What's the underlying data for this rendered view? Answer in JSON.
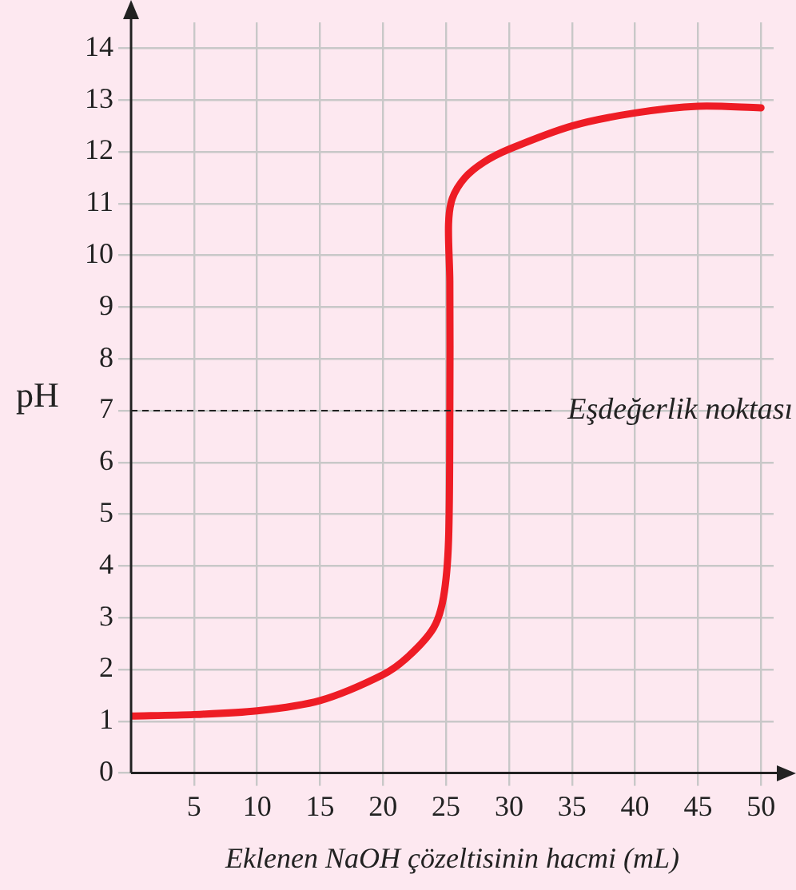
{
  "chart_data": {
    "type": "line",
    "xlabel": "Eklenen NaOH çözeltisinin hacmi (mL)",
    "ylabel": "pH",
    "series": [
      {
        "color": "#ee1c25",
        "x": [
          0,
          5,
          10,
          15,
          20,
          22,
          24,
          24.8,
          25.2,
          25.3,
          25.3,
          25.2,
          25.5,
          26.5,
          28,
          30,
          35,
          40,
          45,
          50
        ],
        "values": [
          1.1,
          1.13,
          1.2,
          1.4,
          1.9,
          2.25,
          2.8,
          3.4,
          4.5,
          7,
          9.5,
          10.6,
          11.1,
          11.5,
          11.8,
          12.05,
          12.5,
          12.75,
          12.88,
          12.85
        ]
      }
    ],
    "xlim": [
      0,
      51
    ],
    "ylim": [
      0,
      14.5
    ],
    "xticks": [
      5,
      10,
      15,
      20,
      25,
      30,
      35,
      40,
      45,
      50
    ],
    "yticks": [
      0,
      1,
      2,
      3,
      4,
      5,
      6,
      7,
      8,
      9,
      10,
      11,
      12,
      13,
      14
    ],
    "grid": true,
    "legend": false,
    "marker": "none",
    "line_style": "solid",
    "ref_lines": [
      {
        "axis": "y",
        "value": 7,
        "label": "Eşdeğerlik noktası",
        "color": "#222222",
        "line_style": "dashed"
      }
    ]
  }
}
